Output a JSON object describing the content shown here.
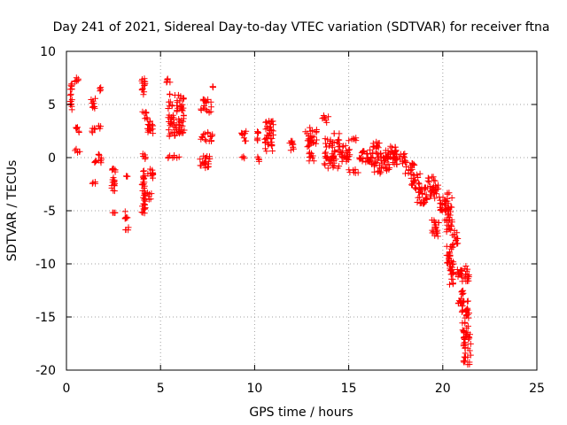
{
  "chart_data": {
    "type": "scatter",
    "title": "Day 241 of 2021, Sidereal Day-to-day VTEC variation (SDTVAR) for receiver ftna",
    "xlabel": "GPS time / hours",
    "ylabel": "SDTVAR / TECUs",
    "xlim": [
      0,
      25
    ],
    "ylim": [
      -20,
      10
    ],
    "xticks": [
      0,
      5,
      10,
      15,
      20,
      25
    ],
    "yticks": [
      -20,
      -15,
      -10,
      -5,
      0,
      5,
      10
    ],
    "grid": true,
    "marker": "+",
    "color": "#ff0000",
    "clusters": [
      {
        "x0": 0.2,
        "x1": 0.3,
        "y0": 4.5,
        "y1": 7.0
      },
      {
        "x0": 0.45,
        "x1": 0.7,
        "y0": 7.1,
        "y1": 7.8
      },
      {
        "x0": 0.45,
        "x1": 0.75,
        "y0": 2.3,
        "y1": 2.9
      },
      {
        "x0": 0.45,
        "x1": 0.75,
        "y0": 0.4,
        "y1": 0.9
      },
      {
        "x0": 1.3,
        "x1": 1.55,
        "y0": 4.6,
        "y1": 5.6
      },
      {
        "x0": 1.3,
        "x1": 1.55,
        "y0": 2.2,
        "y1": 2.8
      },
      {
        "x0": 1.35,
        "x1": 1.6,
        "y0": -0.5,
        "y1": -0.1
      },
      {
        "x0": 1.35,
        "x1": 1.55,
        "y0": -2.5,
        "y1": -2.0
      },
      {
        "x0": 1.75,
        "x1": 1.85,
        "y0": 6.2,
        "y1": 6.6
      },
      {
        "x0": 1.7,
        "x1": 1.9,
        "y0": 2.7,
        "y1": 3.0
      },
      {
        "x0": 1.7,
        "x1": 1.9,
        "y0": -0.5,
        "y1": 0.4
      },
      {
        "x0": 2.4,
        "x1": 2.6,
        "y0": -3.5,
        "y1": -1.0
      },
      {
        "x0": 2.4,
        "x1": 2.6,
        "y0": -5.3,
        "y1": -5.0
      },
      {
        "x0": 3.1,
        "x1": 3.3,
        "y0": -5.8,
        "y1": -5.0
      },
      {
        "x0": 3.1,
        "x1": 3.3,
        "y0": -7.0,
        "y1": -6.5
      },
      {
        "x0": 3.1,
        "x1": 3.25,
        "y0": -1.8,
        "y1": -1.6
      },
      {
        "x0": 4.0,
        "x1": 4.2,
        "y0": 5.9,
        "y1": 7.5
      },
      {
        "x0": 4.0,
        "x1": 4.25,
        "y0": 4.0,
        "y1": 4.5
      },
      {
        "x0": 4.1,
        "x1": 4.3,
        "y0": 3.5,
        "y1": 3.8
      },
      {
        "x0": 4.0,
        "x1": 4.2,
        "y0": -0.2,
        "y1": 0.5
      },
      {
        "x0": 4.0,
        "x1": 4.2,
        "y0": -5.5,
        "y1": -1.0
      },
      {
        "x0": 4.3,
        "x1": 4.6,
        "y0": -4.0,
        "y1": -3.3
      },
      {
        "x0": 4.3,
        "x1": 4.6,
        "y0": -2.0,
        "y1": -0.9
      },
      {
        "x0": 4.3,
        "x1": 4.6,
        "y0": 2.0,
        "y1": 3.6
      },
      {
        "x0": 5.3,
        "x1": 5.6,
        "y0": 7.0,
        "y1": 7.5
      },
      {
        "x0": 5.4,
        "x1": 6.3,
        "y0": 2.0,
        "y1": 6.0
      },
      {
        "x0": 5.4,
        "x1": 6.2,
        "y0": -0.1,
        "y1": 0.3
      },
      {
        "x0": 7.1,
        "x1": 7.7,
        "y0": 4.2,
        "y1": 5.5
      },
      {
        "x0": 7.1,
        "x1": 7.8,
        "y0": 1.5,
        "y1": 2.4
      },
      {
        "x0": 7.1,
        "x1": 7.8,
        "y0": -1.0,
        "y1": 0.2
      },
      {
        "x0": 7.75,
        "x1": 7.8,
        "y0": 6.6,
        "y1": 6.8
      },
      {
        "x0": 9.3,
        "x1": 9.6,
        "y0": 1.5,
        "y1": 2.5
      },
      {
        "x0": 9.3,
        "x1": 9.5,
        "y0": -0.2,
        "y1": 0.2
      },
      {
        "x0": 10.1,
        "x1": 10.2,
        "y0": 1.3,
        "y1": 2.5
      },
      {
        "x0": 10.1,
        "x1": 10.25,
        "y0": -0.4,
        "y1": 0.1
      },
      {
        "x0": 10.5,
        "x1": 11.0,
        "y0": 0.5,
        "y1": 3.5
      },
      {
        "x0": 11.8,
        "x1": 12.1,
        "y0": 0.6,
        "y1": 1.6
      },
      {
        "x0": 12.7,
        "x1": 13.3,
        "y0": 1.0,
        "y1": 2.9
      },
      {
        "x0": 12.9,
        "x1": 13.2,
        "y0": -0.4,
        "y1": 0.5
      },
      {
        "x0": 13.6,
        "x1": 14.0,
        "y0": 3.3,
        "y1": 4.0
      },
      {
        "x0": 13.7,
        "x1": 14.5,
        "y0": -1.0,
        "y1": 1.8
      },
      {
        "x0": 14.2,
        "x1": 14.6,
        "y0": 2.2,
        "y1": 2.5
      },
      {
        "x0": 14.5,
        "x1": 15.1,
        "y0": -0.5,
        "y1": 1.2
      },
      {
        "x0": 14.9,
        "x1": 15.5,
        "y0": 1.6,
        "y1": 2.0
      },
      {
        "x0": 15.0,
        "x1": 15.5,
        "y0": -1.5,
        "y1": -1.0
      },
      {
        "x0": 15.5,
        "x1": 16.2,
        "y0": -0.5,
        "y1": 0.8
      },
      {
        "x0": 16.2,
        "x1": 16.8,
        "y0": 0.8,
        "y1": 1.5
      },
      {
        "x0": 16.2,
        "x1": 17.2,
        "y0": -1.5,
        "y1": 0.5
      },
      {
        "x0": 16.9,
        "x1": 17.6,
        "y0": -0.2,
        "y1": 1.2
      },
      {
        "x0": 17.3,
        "x1": 18.0,
        "y0": -0.8,
        "y1": 0.6
      },
      {
        "x0": 18.0,
        "x1": 18.5,
        "y0": -1.5,
        "y1": -0.3
      },
      {
        "x0": 18.3,
        "x1": 18.8,
        "y0": -3.0,
        "y1": -1.5
      },
      {
        "x0": 18.6,
        "x1": 19.2,
        "y0": -4.5,
        "y1": -2.8
      },
      {
        "x0": 19.2,
        "x1": 19.6,
        "y0": -2.5,
        "y1": -1.8
      },
      {
        "x0": 19.3,
        "x1": 19.8,
        "y0": -4.0,
        "y1": -2.5
      },
      {
        "x0": 19.4,
        "x1": 19.8,
        "y0": -7.5,
        "y1": -5.8
      },
      {
        "x0": 19.8,
        "x1": 20.1,
        "y0": -5.0,
        "y1": -3.5
      },
      {
        "x0": 20.1,
        "x1": 20.5,
        "y0": -7.0,
        "y1": -3.3
      },
      {
        "x0": 20.2,
        "x1": 20.6,
        "y0": -10.0,
        "y1": -8.3
      },
      {
        "x0": 20.3,
        "x1": 20.6,
        "y0": -12.0,
        "y1": -10.0
      },
      {
        "x0": 20.5,
        "x1": 20.8,
        "y0": -8.3,
        "y1": -6.8
      },
      {
        "x0": 20.7,
        "x1": 21.0,
        "y0": -11.5,
        "y1": -10.5
      },
      {
        "x0": 20.8,
        "x1": 21.1,
        "y0": -13.8,
        "y1": -12.5
      },
      {
        "x0": 21.0,
        "x1": 21.4,
        "y0": -11.8,
        "y1": -10.2
      },
      {
        "x0": 21.0,
        "x1": 21.4,
        "y0": -16.5,
        "y1": -13.5
      },
      {
        "x0": 21.1,
        "x1": 21.5,
        "y0": -19.5,
        "y1": -16.5
      }
    ]
  }
}
